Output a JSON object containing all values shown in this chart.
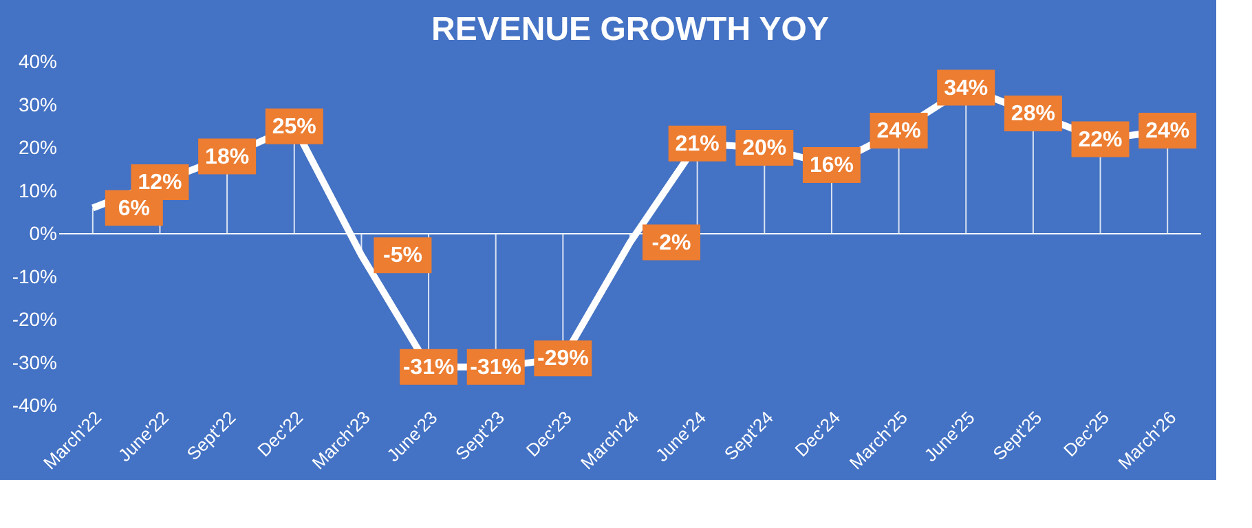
{
  "chart_data": {
    "type": "line",
    "title": "REVENUE GROWTH YOY",
    "categories": [
      "March'22",
      "June'22",
      "Sept'22",
      "Dec'22",
      "March'23",
      "June'23",
      "Sept'23",
      "Dec'23",
      "March'24",
      "June'24",
      "Sept'24",
      "Dec'24",
      "March'25",
      "June'25",
      "Sept'25",
      "Dec'25",
      "March'26"
    ],
    "series": [
      {
        "color": "#ffffff",
        "values": [
          6,
          12,
          18,
          25,
          -5,
          -31,
          -31,
          -29,
          -2,
          21,
          20,
          16,
          24,
          34,
          28,
          22,
          24
        ],
        "value_labels": [
          "6%",
          "12%",
          "18%",
          "25%",
          "-5%",
          "-31%",
          "-31%",
          "-29%",
          "-2%",
          "21%",
          "20%",
          "16%",
          "24%",
          "34%",
          "28%",
          "22%",
          "24%"
        ]
      }
    ],
    "ylim": [
      -40,
      40
    ],
    "yticks": [
      {
        "value": -40,
        "label": "-40%"
      },
      {
        "value": -30,
        "label": "-30%"
      },
      {
        "value": -20,
        "label": "-20%"
      },
      {
        "value": -10,
        "label": "-10%"
      },
      {
        "value": 0,
        "label": "0%"
      },
      {
        "value": 10,
        "label": "10%"
      },
      {
        "value": 20,
        "label": "20%"
      },
      {
        "value": 30,
        "label": "30%"
      },
      {
        "value": 40,
        "label": "40%"
      }
    ],
    "ref_lines": [
      {
        "axis": "y",
        "value": 0,
        "color": "#ffffff"
      }
    ],
    "grid": false,
    "marker": "square",
    "line_style": "solid"
  }
}
